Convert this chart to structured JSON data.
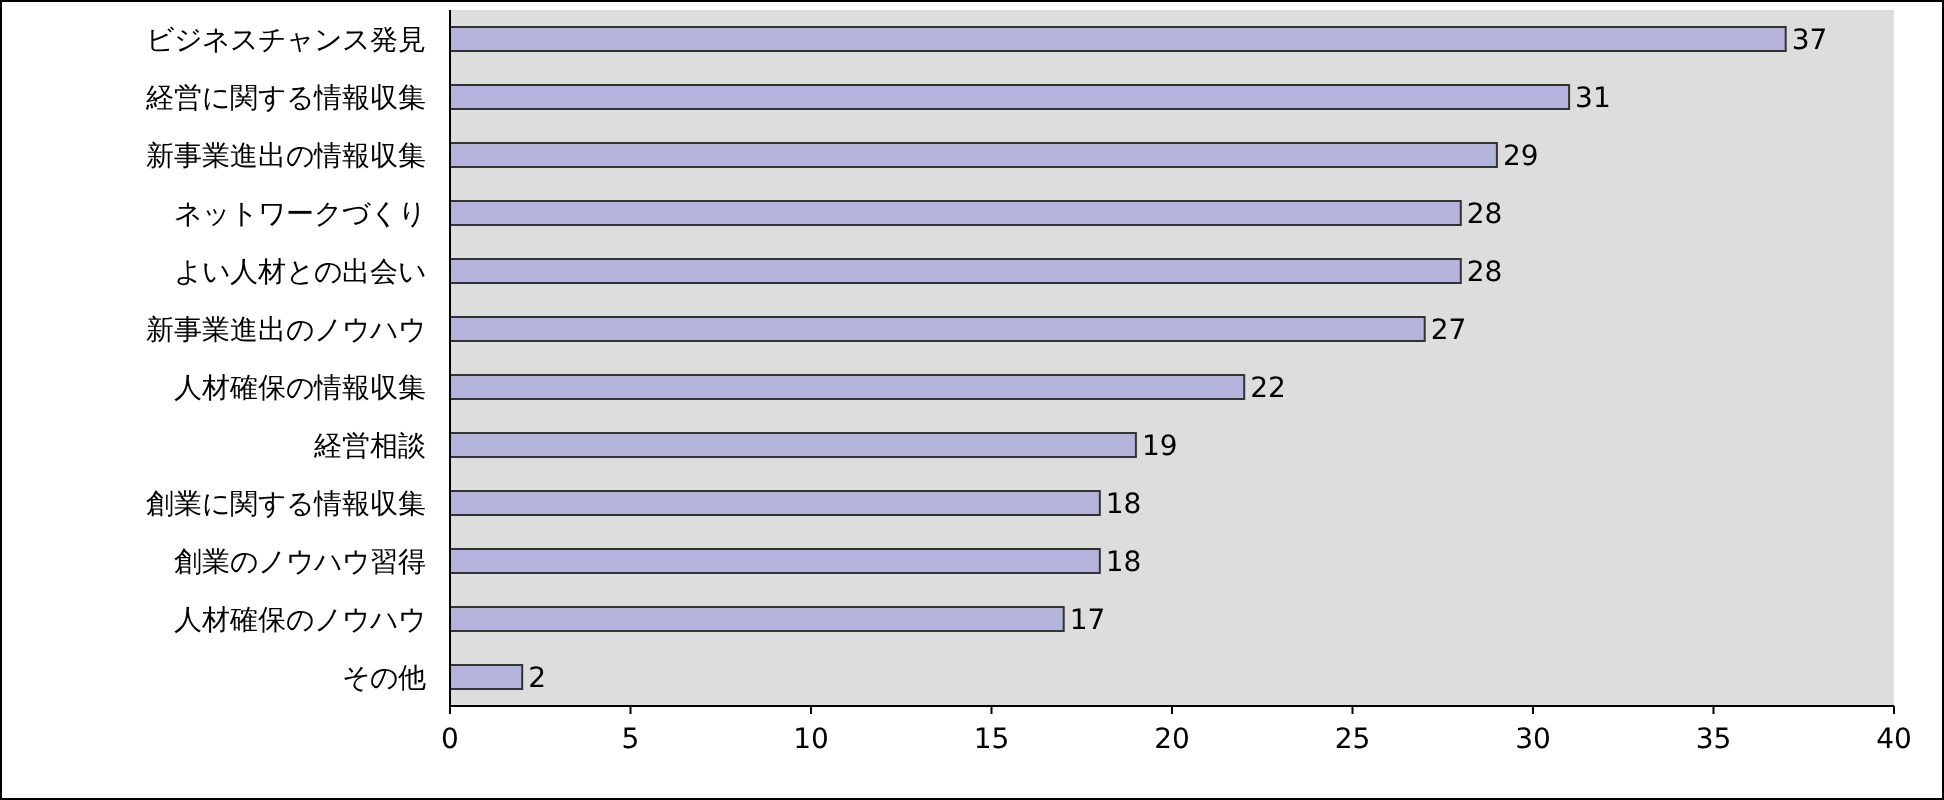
{
  "chart_data": {
    "type": "bar",
    "orientation": "horizontal",
    "categories": [
      "ビジネスチャンス発見",
      "経営に関する情報収集",
      "新事業進出の情報収集",
      "ネットワークづくり",
      "よい人材との出会い",
      "新事業進出のノウハウ",
      "人材確保の情報収集",
      "経営相談",
      "創業に関する情報収集",
      "創業のノウハウ習得",
      "人材確保のノウハウ",
      "その他"
    ],
    "values": [
      37,
      31,
      29,
      28,
      28,
      27,
      22,
      19,
      18,
      18,
      17,
      2
    ],
    "color": "#b3b3dc",
    "xlim": [
      0,
      40
    ],
    "xticks": [
      0,
      5,
      10,
      15,
      20,
      25,
      30,
      35,
      40
    ],
    "data_labels": true
  }
}
